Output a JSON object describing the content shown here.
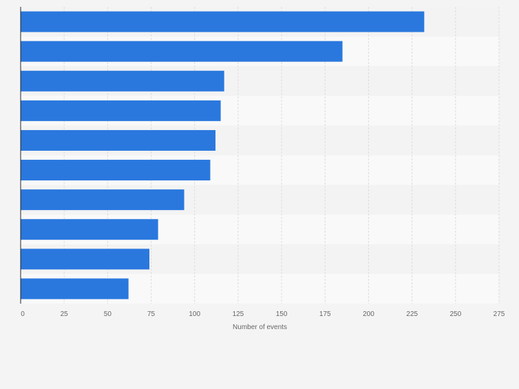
{
  "chart_data": {
    "type": "bar",
    "orientation": "horizontal",
    "categories": [
      "",
      "",
      "",
      "",
      "",
      "",
      "",
      "",
      "",
      ""
    ],
    "values": [
      232,
      185,
      117,
      115,
      112,
      109,
      94,
      79,
      74,
      62
    ],
    "title": "",
    "xlabel": "Number of events",
    "ylabel": "",
    "xlim": [
      0,
      275
    ],
    "xticks": [
      0,
      25,
      50,
      75,
      100,
      125,
      150,
      175,
      200,
      225,
      250,
      275
    ],
    "grid": true,
    "legend": "none",
    "colors": {
      "bar": "#2a78de",
      "band_light": "#f9f9f9",
      "band_dark": "#f3f3f3",
      "gridline": "#dcdcdc",
      "axis": "#222222",
      "text": "#666666"
    }
  }
}
